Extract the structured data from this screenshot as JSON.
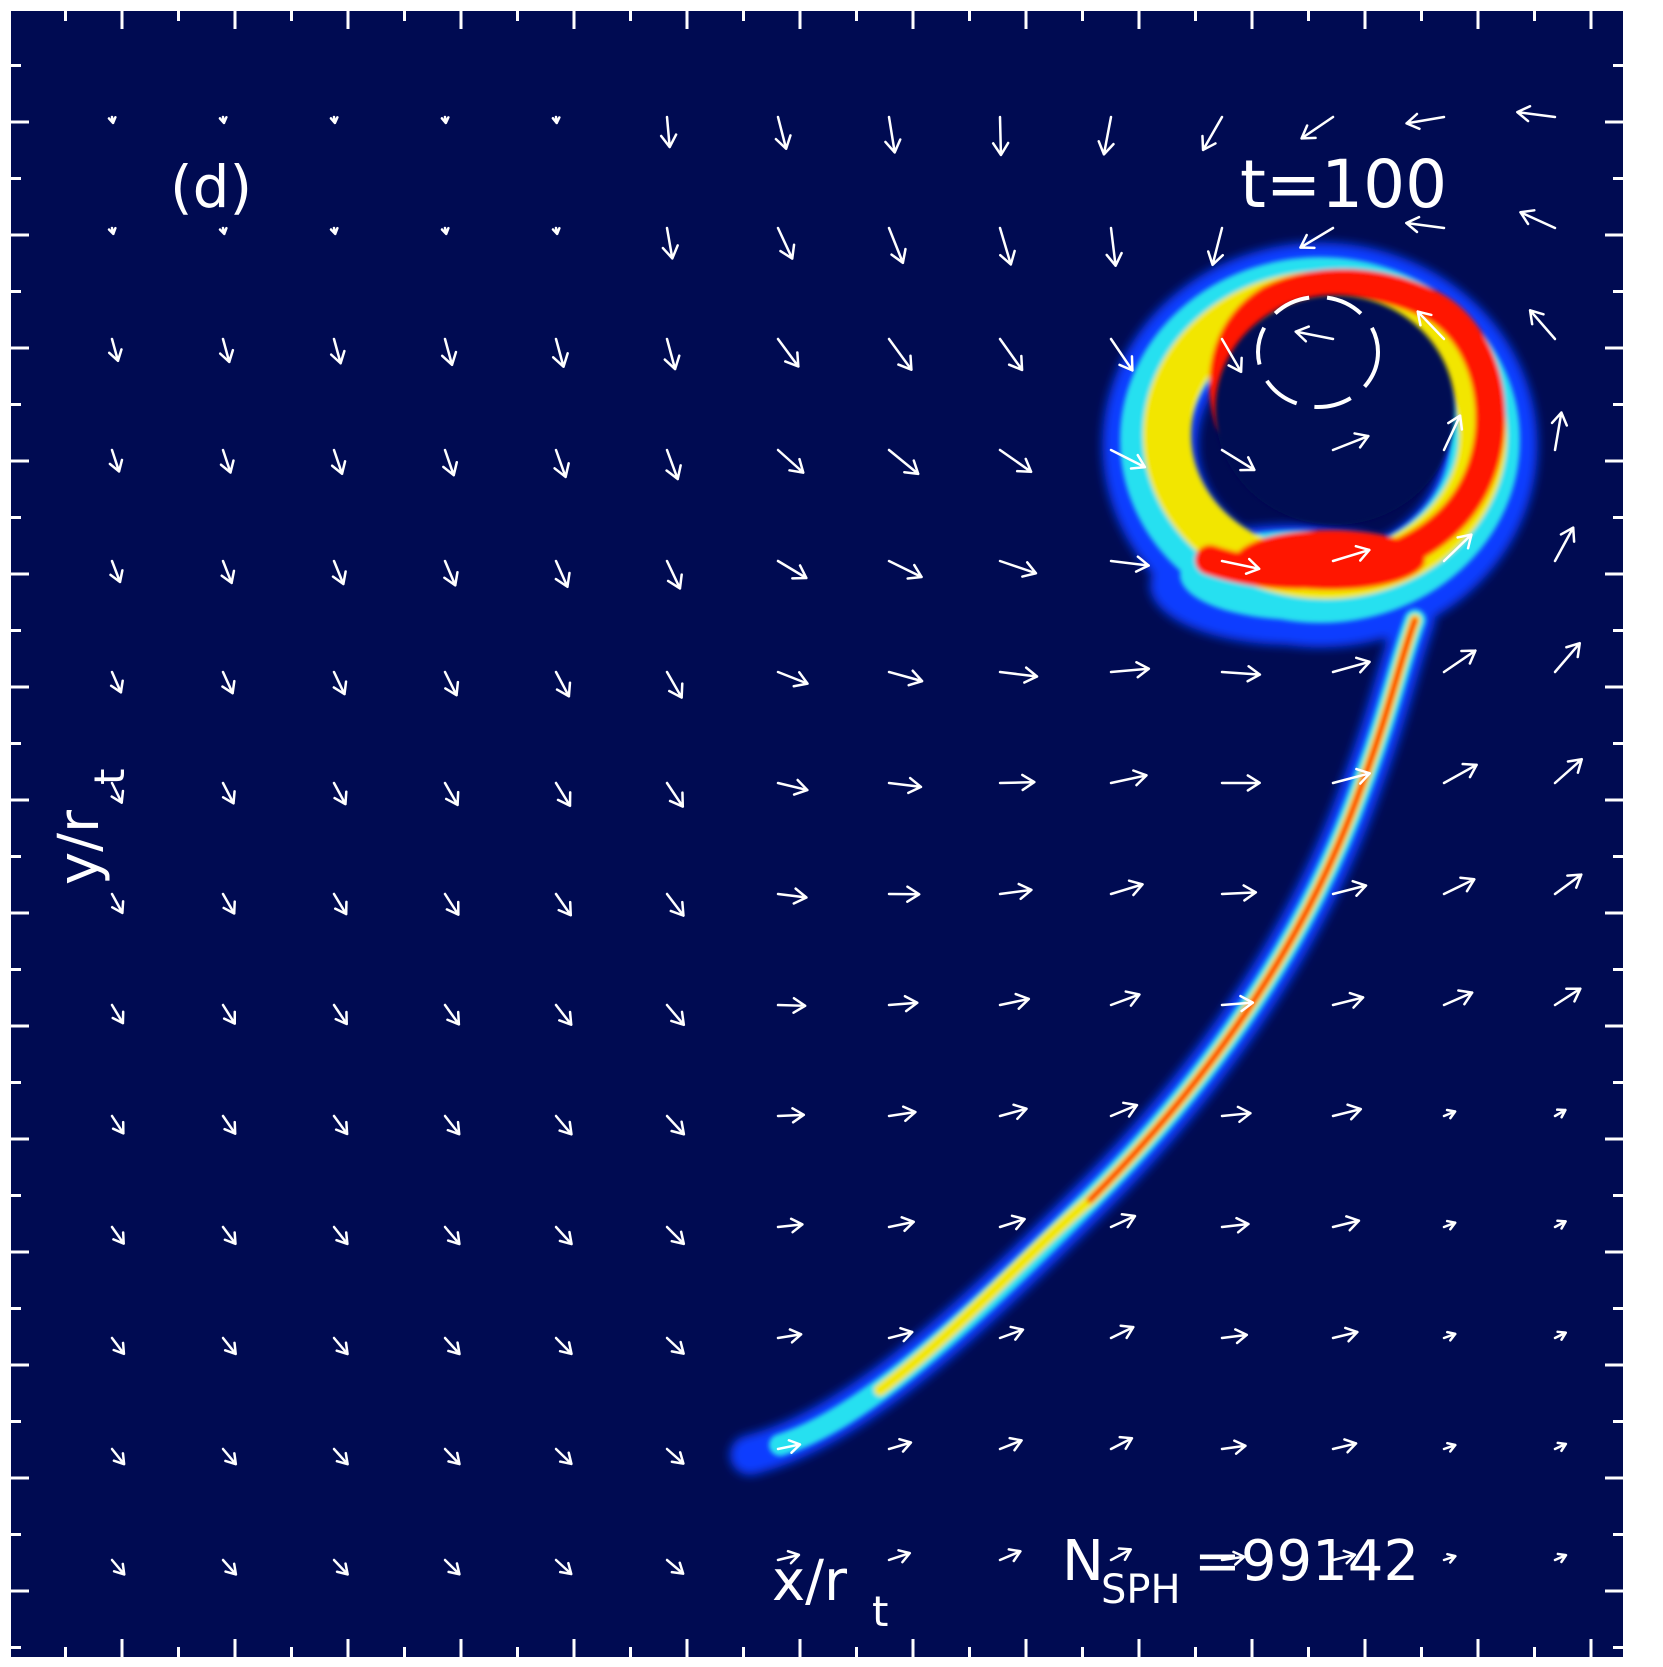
{
  "panel": {
    "label": "(d)",
    "time_label": "t=100",
    "xlabel_main": "x/r",
    "xlabel_sub": "t",
    "ylabel_main": "y/r",
    "ylabel_sub": "t",
    "particles_main": "N",
    "particles_sub": "SPH",
    "particles_value": "=99142"
  },
  "colors": {
    "background": "#000b52",
    "frame": "#ffffff",
    "arrows": "#ffffff",
    "density_low": "#0a3cff",
    "density_mid": "#27e0f0",
    "density_high": "#f2e600",
    "density_peak": "#ff1200"
  }
}
